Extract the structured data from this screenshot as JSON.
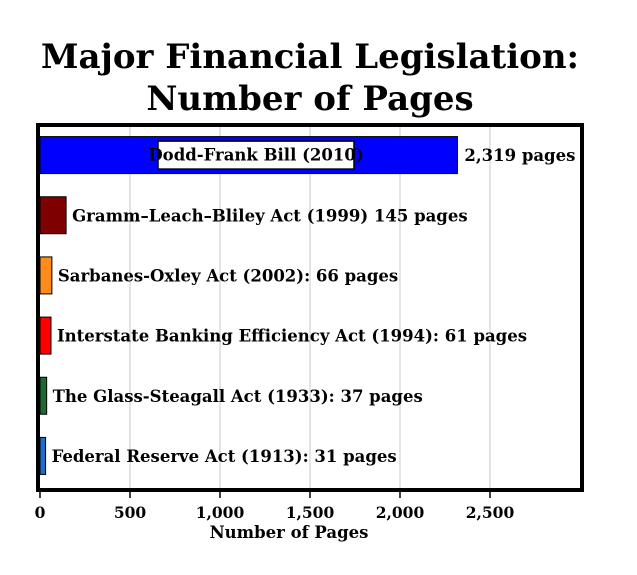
{
  "chart_data": {
    "type": "bar",
    "orientation": "horizontal",
    "title_lines": [
      "Major Financial Legislation:",
      "Number of Pages"
    ],
    "xlabel": "Number of Pages",
    "ylabel": "",
    "xlim": [
      0,
      3000
    ],
    "xticks": [
      0,
      500,
      1000,
      1500,
      2000,
      2500
    ],
    "xtick_labels": [
      "0",
      "500",
      "1,000",
      "1,500",
      "2,000",
      "2,500"
    ],
    "grid": "vertical",
    "bars": [
      {
        "category": "Dodd-Frank Bill (2010)",
        "value": 2319,
        "color": "#0000ff",
        "inner_label": "Dodd-Frank Bill (2010)",
        "value_label": "2,319 pages"
      },
      {
        "category": "Gramm–Leach–Bliley Act (1999)",
        "value": 145,
        "color": "#7f0000",
        "label": "Gramm–Leach–Bliley Act (1999) 145 pages"
      },
      {
        "category": "Sarbanes-Oxley Act (2002)",
        "value": 66,
        "color": "#ff8c1a",
        "label": "Sarbanes-Oxley Act (2002): 66 pages"
      },
      {
        "category": "Interstate Banking Efficiency Act (1994)",
        "value": 61,
        "color": "#ff0000",
        "label": "Interstate Banking Efficiency Act (1994): 61 pages"
      },
      {
        "category": "The Glass-Steagall Act (1933)",
        "value": 37,
        "color": "#1a6b2e",
        "label": "The Glass-Steagall Act (1933): 37 pages"
      },
      {
        "category": "Federal Reserve Act (1913)",
        "value": 31,
        "color": "#1f6bd1",
        "label": "Federal Reserve Act (1913): 31 pages"
      }
    ]
  }
}
